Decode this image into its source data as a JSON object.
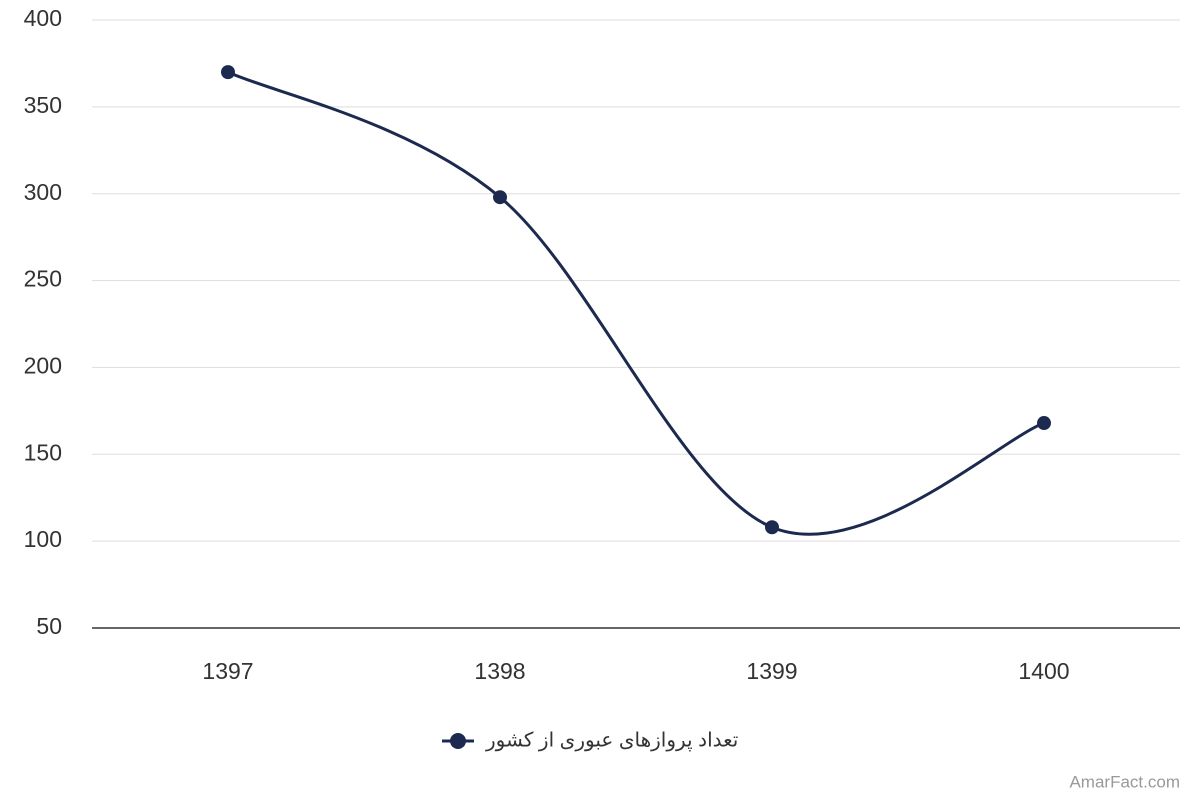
{
  "chart_data": {
    "type": "line",
    "categories": [
      "1397",
      "1398",
      "1399",
      "1400"
    ],
    "series": [
      {
        "name": "تعداد پروازهای عبوری از کشور",
        "color": "#1b2a4e",
        "values": [
          370,
          298,
          108,
          168
        ]
      }
    ],
    "ylim": [
      50,
      400
    ],
    "yticks": [
      50,
      100,
      150,
      200,
      250,
      300,
      350,
      400
    ],
    "grid": true,
    "smooth": true,
    "legend": "bottom",
    "credit": "AmarFact.com"
  }
}
